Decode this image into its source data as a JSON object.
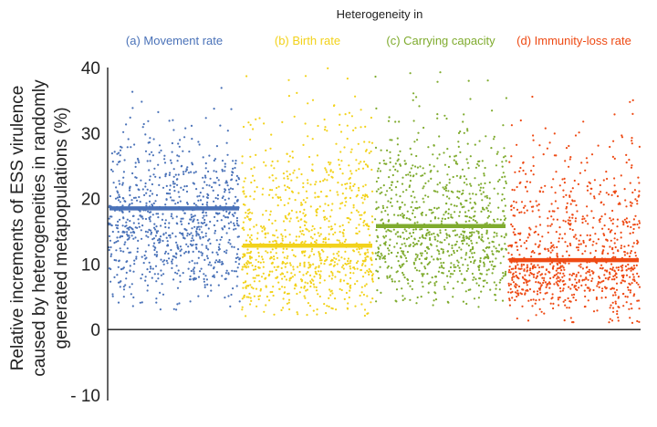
{
  "chart_data": {
    "type": "scatter",
    "title": "Heterogeneity in",
    "ylabel_lines": [
      "Relative increments of ESS virulence",
      "caused by heterogeneities in randomly",
      "generated metapopulations (%)"
    ],
    "ylim": [
      -10,
      40
    ],
    "yticks": [
      -10,
      0,
      10,
      20,
      30,
      40
    ],
    "ytick_labels": [
      "- 10",
      "0",
      "10",
      "20",
      "30",
      "40"
    ],
    "zero_line": true,
    "grid": false,
    "series": [
      {
        "name": "(a) Movement rate",
        "color": "#4a72b8",
        "mean": 18.5,
        "spread_low": 3,
        "spread_high": 37,
        "center": 16,
        "n": 900,
        "seed": 11
      },
      {
        "name": "(b) Birth rate",
        "color": "#f2d21b",
        "mean": 12.8,
        "spread_low": 2,
        "spread_high": 40,
        "center": 12,
        "n": 900,
        "seed": 23
      },
      {
        "name": "(c) Carrying capacity",
        "color": "#7fab2e",
        "mean": 15.8,
        "spread_low": 3,
        "spread_high": 40,
        "center": 15,
        "n": 900,
        "seed": 37
      },
      {
        "name": "(d) Immunity-loss rate",
        "color": "#ee4a14",
        "mean": 10.6,
        "spread_low": 1,
        "spread_high": 38,
        "center": 10,
        "n": 900,
        "seed": 53
      }
    ]
  }
}
